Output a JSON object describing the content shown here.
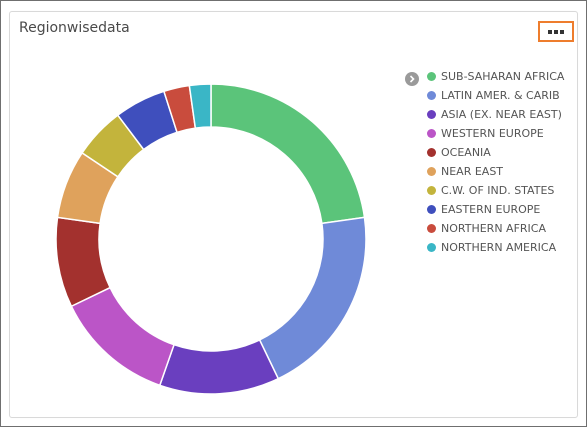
{
  "card": {
    "title": "Regionwisedata",
    "menu_icon": "ellipsis-icon",
    "legend_toggle_icon": "chevron-right-icon"
  },
  "chart_data": {
    "type": "pie",
    "variant": "donut",
    "legend_placement": "right",
    "series": [
      {
        "name": "SUB-SAHARAN AFRICA",
        "value": 51,
        "color": "#5bc47a"
      },
      {
        "name": "LATIN AMER. & CARIB",
        "value": 45,
        "color": "#6f8ad8"
      },
      {
        "name": "ASIA (EX. NEAR EAST)",
        "value": 28,
        "color": "#6a3fbf"
      },
      {
        "name": "WESTERN EUROPE",
        "value": 28,
        "color": "#bb55c7"
      },
      {
        "name": "OCEANIA",
        "value": 21,
        "color": "#a3312e"
      },
      {
        "name": "NEAR EAST",
        "value": 16,
        "color": "#dfa25c"
      },
      {
        "name": "C.W. OF IND. STATES",
        "value": 12,
        "color": "#c3b43c"
      },
      {
        "name": "EASTERN EUROPE",
        "value": 12,
        "color": "#3f4fbd"
      },
      {
        "name": "NORTHERN AFRICA",
        "value": 6,
        "color": "#c94c3d"
      },
      {
        "name": "NORTHERN AMERICA",
        "value": 5,
        "color": "#3ab6c6"
      }
    ]
  }
}
